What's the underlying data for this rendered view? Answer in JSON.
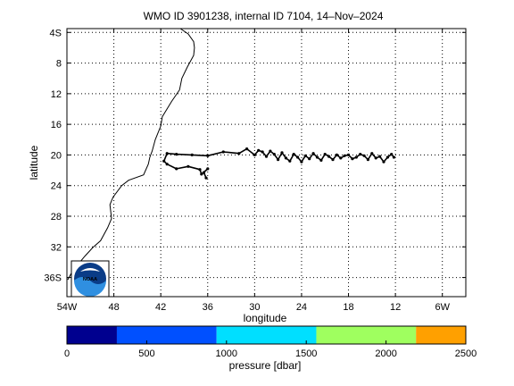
{
  "chart_data": {
    "type": "line",
    "title": "WMO ID 3901238, internal ID 7104, 14–Nov–2024",
    "xlabel": "longitude",
    "ylabel": "latitude",
    "xlim": [
      -54,
      -3
    ],
    "ylim": [
      -38.5,
      -3.5
    ],
    "grid": true,
    "x_ticks": [
      {
        "value": -54,
        "label": "54W"
      },
      {
        "value": -48,
        "label": "48"
      },
      {
        "value": -42,
        "label": "42"
      },
      {
        "value": -36,
        "label": "36"
      },
      {
        "value": -30,
        "label": "30"
      },
      {
        "value": -24,
        "label": "24"
      },
      {
        "value": -18,
        "label": "18"
      },
      {
        "value": -12,
        "label": "12"
      },
      {
        "value": -6,
        "label": "6W"
      }
    ],
    "y_ticks": [
      {
        "value": -4,
        "label": "4S"
      },
      {
        "value": -8,
        "label": "8"
      },
      {
        "value": -12,
        "label": "12"
      },
      {
        "value": -16,
        "label": "16"
      },
      {
        "value": -20,
        "label": "20"
      },
      {
        "value": -24,
        "label": "24"
      },
      {
        "value": -28,
        "label": "28"
      },
      {
        "value": -32,
        "label": "32"
      },
      {
        "value": -36,
        "label": "36S"
      }
    ],
    "coastline": {
      "x": [
        -39.5,
        -38.5,
        -37.8,
        -37.7,
        -37.8,
        -38.6,
        -39.3,
        -39.6,
        -40.6,
        -41.8,
        -42.0,
        -42.7,
        -43.1,
        -43.4,
        -43.6,
        -44.2,
        -46.1,
        -47.0,
        -48.1,
        -48.5,
        -48.3,
        -48.8,
        -49.7,
        -50.7,
        -51.7,
        -52.5,
        -53.3,
        -53.9
      ],
      "y": [
        -3.5,
        -4.2,
        -5.2,
        -6.0,
        -7.0,
        -8.5,
        -10.0,
        -11.5,
        -13.0,
        -15.0,
        -16.2,
        -18.0,
        -19.5,
        -20.3,
        -21.2,
        -22.6,
        -23.3,
        -24.0,
        -25.5,
        -26.5,
        -28.3,
        -29.5,
        -31.2,
        -32.1,
        -33.2,
        -34.2,
        -35.2,
        -36.3
      ]
    },
    "series": [
      {
        "x": [
          -36.2,
          -36.5,
          -36.0,
          -36.8,
          -37.0,
          -38.5,
          -40.0,
          -41.2,
          -41.6,
          -41.2,
          -40.0,
          -38.0,
          -36.0,
          -34.0,
          -32.0,
          -31.0,
          -30.0,
          -29.5,
          -29.0,
          -28.5,
          -28.0,
          -27.5,
          -27.0,
          -26.5,
          -26.0,
          -25.5,
          -25.0,
          -24.5,
          -24.0,
          -23.5,
          -23.0,
          -22.5,
          -22.0,
          -21.5,
          -21.0,
          -20.5,
          -20.0,
          -19.5,
          -19.0,
          -18.5,
          -18.0,
          -17.5,
          -17.0,
          -16.5,
          -16.0,
          -15.5,
          -15.0,
          -14.5,
          -14.0,
          -13.5,
          -13.0,
          -12.5,
          -12.2
        ],
        "y": [
          -23.0,
          -22.3,
          -21.8,
          -22.5,
          -21.9,
          -21.5,
          -21.8,
          -21.2,
          -20.8,
          -19.8,
          -19.9,
          -20.0,
          -20.1,
          -19.6,
          -19.8,
          -19.2,
          -20.0,
          -19.4,
          -19.6,
          -20.2,
          -19.5,
          -19.9,
          -20.6,
          -19.7,
          -20.4,
          -20.8,
          -19.9,
          -20.3,
          -20.9,
          -20.1,
          -20.5,
          -19.8,
          -20.3,
          -20.7,
          -19.9,
          -20.2,
          -20.6,
          -20.0,
          -20.4,
          -20.1,
          -20.0,
          -20.5,
          -20.3,
          -19.9,
          -20.1,
          -20.6,
          -19.8,
          -20.4,
          -20.2,
          -20.9,
          -20.3,
          -19.9,
          -20.3
        ]
      }
    ],
    "colorbar": {
      "label": "pressure [dbar]",
      "range": [
        0,
        2500
      ],
      "tick_labels": [
        "0",
        "500",
        "1000",
        "1500",
        "2000",
        "2500"
      ],
      "bands": [
        {
          "from": 0,
          "to": 313,
          "color": "#00008f"
        },
        {
          "from": 313,
          "to": 938,
          "color": "#0050ff"
        },
        {
          "from": 938,
          "to": 1563,
          "color": "#00dfff"
        },
        {
          "from": 1563,
          "to": 2188,
          "color": "#9fff5f"
        },
        {
          "from": 2188,
          "to": 2500,
          "color": "#ffa000"
        }
      ]
    },
    "logo": {
      "text": "NOAA"
    }
  }
}
